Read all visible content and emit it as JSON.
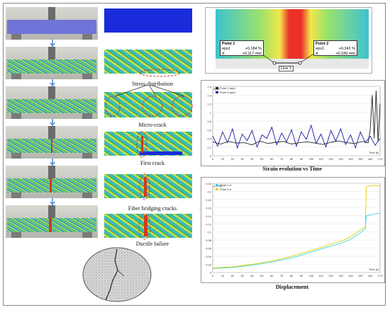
{
  "captions": {
    "stress_distribution": "Stress distribution",
    "micro_crack": "Micro-crack",
    "first_crack": "First crack",
    "fiber_bridging": "Fiber bridging cracks",
    "ductile_failure": "Ductile failure"
  },
  "inset": {
    "point1_title": "Point 1",
    "point1_eps_label": "eps1",
    "point1_eps_value": "+0.184 %",
    "point1_d_label": "d",
    "point1_d_value": "+0.117 mm",
    "point2_title": "Point 2",
    "point2_eps_label": "eps1",
    "point2_eps_value": "+0.342 %",
    "point2_d_label": "d",
    "point2_d_value": "+0.189 mm",
    "line_label": "Line 1"
  },
  "titles": {
    "strain_plot": "Strain evolution vs Time",
    "disp_plot": "Displacement"
  },
  "chart_data": [
    {
      "type": "line",
      "title": "Strain evolution vs Time",
      "ylabel": "eps1",
      "xlabel": "Time [s]",
      "xlim": [
        0,
        170
      ],
      "ylim": [
        0,
        1.6
      ],
      "x_ticks": [
        "0",
        "10",
        "20",
        "30",
        "40",
        "50",
        "60",
        "70",
        "80",
        "90",
        "100",
        "110",
        "120",
        "130",
        "140",
        "150",
        "160",
        "170"
      ],
      "y_ticks": [
        "0",
        "0.2",
        "0.4",
        "0.6",
        "0.8",
        "1",
        "1.2",
        "1.4",
        "1.6"
      ],
      "legend": [
        "Point 1.eps1",
        "Point 2.eps1"
      ],
      "series": [
        {
          "name": "Point 1.eps1",
          "color": "#222222",
          "x": [
            0,
            8,
            16,
            24,
            32,
            40,
            48,
            56,
            64,
            72,
            80,
            88,
            96,
            104,
            112,
            120,
            128,
            136,
            144,
            152,
            158,
            160,
            162,
            164,
            166,
            168,
            170
          ],
          "y": [
            0.32,
            0.27,
            0.33,
            0.29,
            0.3,
            0.25,
            0.34,
            0.28,
            0.31,
            0.33,
            0.27,
            0.3,
            0.32,
            0.29,
            0.26,
            0.31,
            0.34,
            0.3,
            0.28,
            0.33,
            0.3,
            0.6,
            1.4,
            0.4,
            1.5,
            0.32,
            1.2
          ]
        },
        {
          "name": "Point 2.eps1",
          "color": "#1a1a9e",
          "x": [
            0,
            5,
            10,
            15,
            20,
            25,
            30,
            35,
            40,
            45,
            50,
            55,
            60,
            65,
            70,
            75,
            80,
            85,
            90,
            95,
            100,
            105,
            110,
            115,
            120,
            125,
            130,
            135,
            140,
            145,
            150,
            155,
            160,
            165,
            170
          ],
          "y": [
            0.45,
            0.22,
            0.55,
            0.3,
            0.62,
            0.18,
            0.5,
            0.35,
            0.58,
            0.2,
            0.48,
            0.4,
            0.66,
            0.25,
            0.52,
            0.32,
            0.6,
            0.22,
            0.55,
            0.38,
            0.7,
            0.28,
            0.5,
            0.2,
            0.58,
            0.34,
            0.62,
            0.26,
            0.48,
            0.18,
            0.55,
            0.3,
            0.45,
            0.24,
            0.4
          ]
        }
      ]
    },
    {
      "type": "line",
      "title": "Displacement",
      "ylabel": "d [mm]",
      "xlabel": "Time [s]",
      "xlim": [
        0,
        170
      ],
      "ylim": [
        0,
        0.22
      ],
      "x_ticks": [
        "0",
        "10",
        "20",
        "30",
        "40",
        "50",
        "60",
        "70",
        "80",
        "90",
        "100",
        "110",
        "120",
        "130",
        "140",
        "150",
        "160",
        "170"
      ],
      "y_ticks": [
        "0",
        "0.02",
        "0.04",
        "0.06",
        "0.08",
        "0.1",
        "0.12",
        "0.14",
        "0.16",
        "0.18",
        "0.2",
        "0.22"
      ],
      "legend": [
        "Point 1.d",
        "Point 2.d"
      ],
      "series": [
        {
          "name": "Point 1.d",
          "color": "#3ad6e6",
          "x": [
            0,
            20,
            40,
            60,
            80,
            100,
            110,
            120,
            130,
            140,
            150,
            155,
            156,
            160,
            165,
            170
          ],
          "y": [
            0.01,
            0.012,
            0.018,
            0.026,
            0.036,
            0.05,
            0.058,
            0.065,
            0.072,
            0.082,
            0.098,
            0.108,
            0.14,
            0.142,
            0.145,
            0.146
          ]
        },
        {
          "name": "Point 2.d",
          "color": "#e0d000",
          "x": [
            0,
            20,
            40,
            60,
            80,
            100,
            110,
            120,
            130,
            140,
            150,
            155,
            156,
            160,
            165,
            170
          ],
          "y": [
            0.011,
            0.014,
            0.02,
            0.028,
            0.04,
            0.054,
            0.062,
            0.07,
            0.077,
            0.088,
            0.105,
            0.112,
            0.212,
            0.214,
            0.215,
            0.214
          ]
        }
      ]
    }
  ]
}
